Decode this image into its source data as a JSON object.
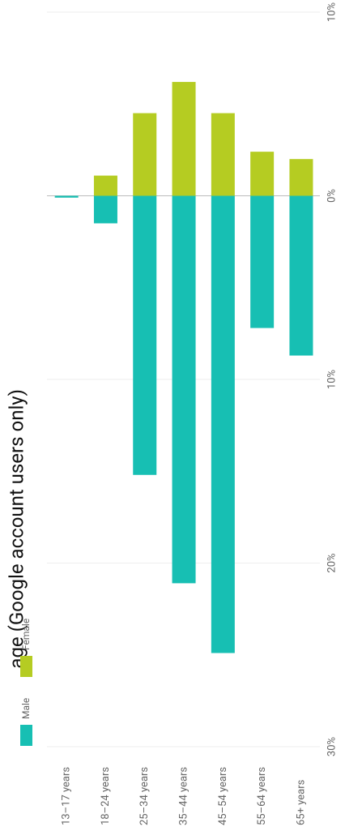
{
  "chart_data": {
    "type": "bar",
    "title": "age (Google account users only)",
    "categories": [
      "13–17 years",
      "18–24 years",
      "25–34 years",
      "35–44 years",
      "45–54 years",
      "55–64 years",
      "65+ years"
    ],
    "series": [
      {
        "name": "Male",
        "color": "#17bfb3",
        "values": [
          0.1,
          1.5,
          15.2,
          21.1,
          24.9,
          7.2,
          8.7
        ]
      },
      {
        "name": "Female",
        "color": "#b5cc22",
        "values": [
          0,
          -1.1,
          -4.5,
          -6.2,
          -4.5,
          -2.4,
          -2.0
        ]
      }
    ],
    "ylim": [
      -10,
      30
    ],
    "yticks": [
      {
        "value": -10,
        "label": "10%"
      },
      {
        "value": 0,
        "label": "0%"
      },
      {
        "value": 10,
        "label": "10%"
      },
      {
        "value": 20,
        "label": "20%"
      },
      {
        "value": 30,
        "label": "30%"
      }
    ],
    "grid": true
  }
}
